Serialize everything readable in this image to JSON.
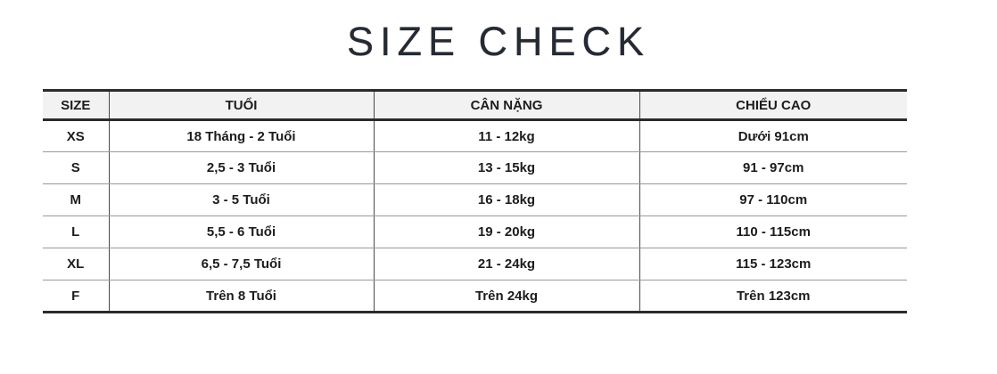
{
  "page": {
    "title": "SIZE CHECK"
  },
  "colors": {
    "title_text": "#252a33",
    "cell_text": "#1c1c1c",
    "header_background": "#f2f2f2",
    "thick_border": "#2b2b2b",
    "row_divider": "#999999",
    "column_divider": "#4a4a4a",
    "page_background": "#ffffff"
  },
  "table": {
    "headers": [
      "SIZE",
      "TUỔI",
      "CÂN NẶNG",
      "CHIỂU CAO"
    ],
    "rows": [
      {
        "size": "XS",
        "age": "18 Tháng - 2 Tuổi",
        "weight": "11 - 12kg",
        "height": "Dưới 91cm"
      },
      {
        "size": "S",
        "age": "2,5 - 3 Tuổi",
        "weight": "13 - 15kg",
        "height": "91 - 97cm"
      },
      {
        "size": "M",
        "age": "3 - 5 Tuổi",
        "weight": "16 - 18kg",
        "height": "97 - 110cm"
      },
      {
        "size": "L",
        "age": "5,5 - 6 Tuổi",
        "weight": "19 - 20kg",
        "height": "110 - 115cm"
      },
      {
        "size": "XL",
        "age": "6,5 - 7,5 Tuổi",
        "weight": "21 - 24kg",
        "height": "115 - 123cm"
      },
      {
        "size": "F",
        "age": "Trên 8 Tuổi",
        "weight": "Trên 24kg",
        "height": "Trên 123cm"
      }
    ]
  }
}
